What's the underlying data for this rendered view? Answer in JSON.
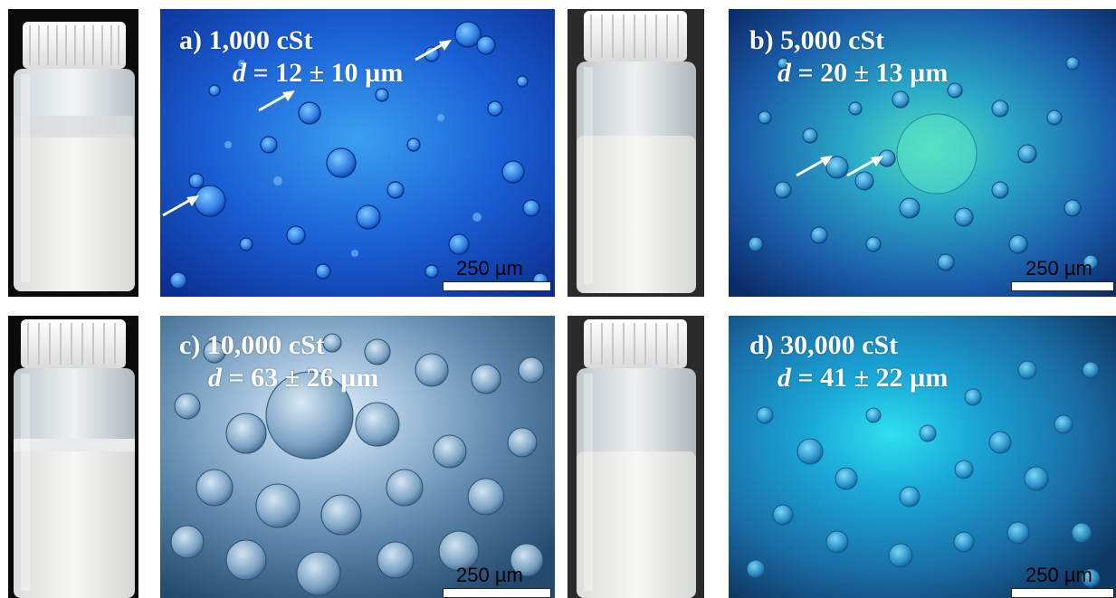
{
  "panels": [
    {
      "id": "a",
      "label": "a) 1,000 cSt",
      "diameter_symbol": "d",
      "diameter_value": "= 12 ± 10 µm",
      "scale_bar": "250 µm",
      "tint": "#1a5fd6"
    },
    {
      "id": "b",
      "label": "b) 5,000 cSt",
      "diameter_symbol": "d",
      "diameter_value": "= 20 ± 13 µm",
      "scale_bar": "250 µm",
      "tint": "#1c7bc8"
    },
    {
      "id": "c",
      "label": "c) 10,000 cSt",
      "diameter_symbol": "d",
      "diameter_value": "= 63 ± 26 µm",
      "scale_bar": "250 µm",
      "tint": "#6f95b8"
    },
    {
      "id": "d",
      "label": "d) 30,000 cSt",
      "diameter_symbol": "d",
      "diameter_value": "= 41 ± 22 µm",
      "scale_bar": "250 µm",
      "tint": "#1f86c4"
    }
  ]
}
